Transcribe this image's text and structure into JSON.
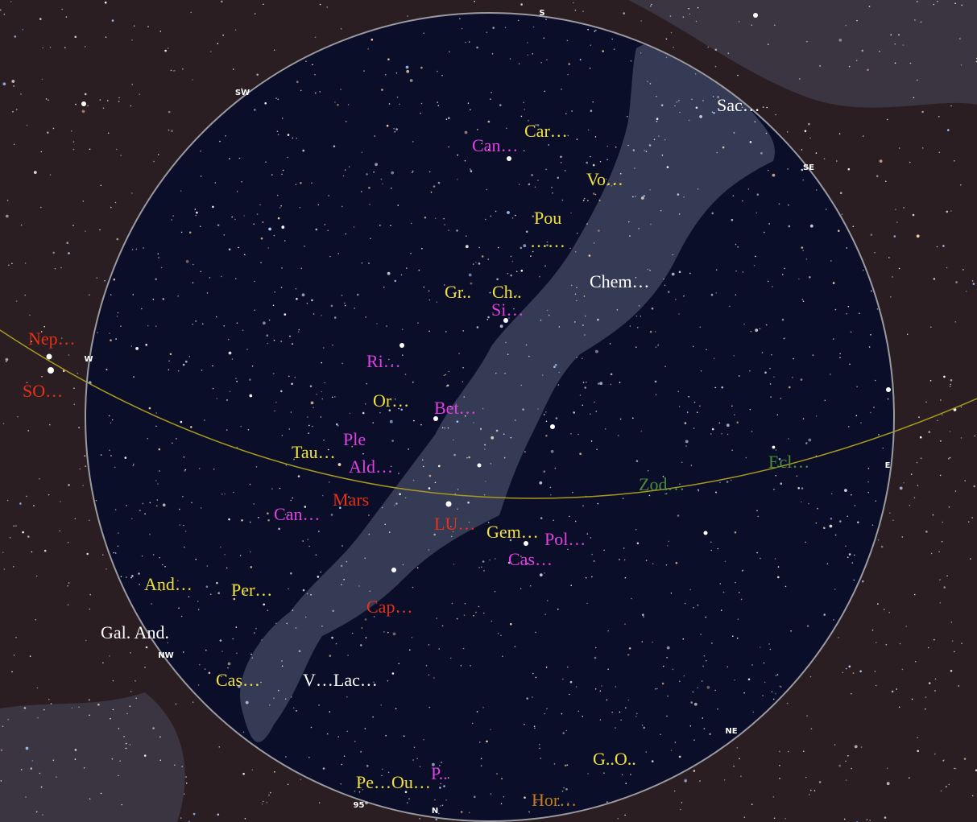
{
  "colors": {
    "sky_outer": "#2a1e22",
    "sky_inner": "#0a0e28",
    "milky_way": "#5a607a",
    "horizon": "#9a9aa0",
    "ecliptic": "#a89a20",
    "constellation": "#f0e040",
    "star": "#e040e0",
    "planet": "#e83018",
    "deep_sky": "#ffffff",
    "zodiac": "#4a8a3a",
    "horizon_label": "#c87a18"
  },
  "compass": {
    "S": "S",
    "SW": "SW",
    "SE": "SE",
    "W": "W",
    "E": "E",
    "NW": "NW",
    "NE": "NE",
    "N": "N",
    "fov": "95°"
  },
  "labels": [
    {
      "id": "sac",
      "text": "Sac…",
      "kind": "deep_sky"
    },
    {
      "id": "car",
      "text": "Car…",
      "kind": "constellation"
    },
    {
      "id": "can-top",
      "text": "Can…",
      "kind": "star"
    },
    {
      "id": "vo",
      "text": "Vo…",
      "kind": "constellation"
    },
    {
      "id": "pou",
      "text": "Pou",
      "kind": "constellation"
    },
    {
      "id": "pou-dots",
      "text": "……",
      "kind": "constellation"
    },
    {
      "id": "chem",
      "text": "Chem…",
      "kind": "deep_sky"
    },
    {
      "id": "gr",
      "text": "Gr..",
      "kind": "constellation"
    },
    {
      "id": "ch",
      "text": "Ch..",
      "kind": "constellation"
    },
    {
      "id": "si",
      "text": "Si…",
      "kind": "star"
    },
    {
      "id": "nep",
      "text": "Nep…",
      "kind": "planet"
    },
    {
      "id": "so",
      "text": "SO…",
      "kind": "planet"
    },
    {
      "id": "ri",
      "text": "Ri…",
      "kind": "star"
    },
    {
      "id": "or",
      "text": "Or…",
      "kind": "constellation"
    },
    {
      "id": "bet",
      "text": "Bet…",
      "kind": "star"
    },
    {
      "id": "ple",
      "text": "Ple",
      "kind": "star"
    },
    {
      "id": "tau",
      "text": "Tau…",
      "kind": "constellation"
    },
    {
      "id": "ald",
      "text": "Ald…",
      "kind": "star"
    },
    {
      "id": "ecl",
      "text": "Ecl…",
      "kind": "zodiac"
    },
    {
      "id": "zod",
      "text": "Zod…",
      "kind": "zodiac"
    },
    {
      "id": "mars",
      "text": "Mars",
      "kind": "planet"
    },
    {
      "id": "can-mid",
      "text": "Can…",
      "kind": "star"
    },
    {
      "id": "lu",
      "text": "LU…",
      "kind": "planet"
    },
    {
      "id": "gem",
      "text": "Gem…",
      "kind": "constellation"
    },
    {
      "id": "pol",
      "text": "Pol…",
      "kind": "star"
    },
    {
      "id": "cas-star",
      "text": "Cas…",
      "kind": "star"
    },
    {
      "id": "and",
      "text": "And…",
      "kind": "constellation"
    },
    {
      "id": "per",
      "text": "Per…",
      "kind": "constellation"
    },
    {
      "id": "cap",
      "text": "Cap…",
      "kind": "planet"
    },
    {
      "id": "gal-and",
      "text": "Gal. And.",
      "kind": "deep_sky"
    },
    {
      "id": "cas",
      "text": "Cas…",
      "kind": "constellation"
    },
    {
      "id": "v-lac",
      "text": "V…Lac…",
      "kind": "deep_sky"
    },
    {
      "id": "go",
      "text": "G..O..",
      "kind": "constellation"
    },
    {
      "id": "pe-ou",
      "text": "Pe…Ou…",
      "kind": "constellation"
    },
    {
      "id": "p",
      "text": "P..",
      "kind": "star"
    },
    {
      "id": "hor",
      "text": "Hor…",
      "kind": "horizon_label"
    }
  ]
}
